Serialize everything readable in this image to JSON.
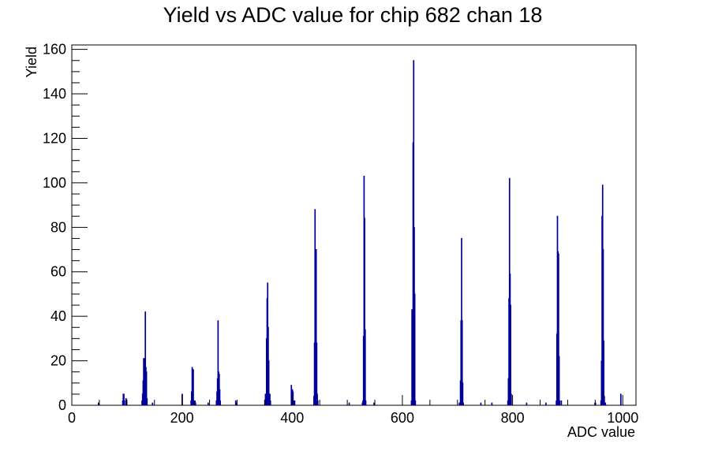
{
  "chart_data": {
    "type": "bar",
    "title": "Yield vs ADC value for chip 682 chan 18",
    "xlabel": "ADC value",
    "ylabel": "Yield",
    "xlim": [
      0,
      1024
    ],
    "ylim": [
      0,
      162
    ],
    "x_ticks": [
      0,
      200,
      400,
      600,
      800,
      1000
    ],
    "y_ticks": [
      0,
      20,
      40,
      60,
      80,
      100,
      120,
      140,
      160
    ],
    "grid": false,
    "legend": "none",
    "colors": {
      "histogram": "#000099",
      "axes": "#000000"
    },
    "series": [
      {
        "points": [
          [
            48,
            1
          ],
          [
            92,
            2
          ],
          [
            93,
            5
          ],
          [
            94,
            5
          ],
          [
            95,
            2
          ],
          [
            98,
            3
          ],
          [
            99,
            2
          ],
          [
            127,
            2
          ],
          [
            128,
            5
          ],
          [
            129,
            11
          ],
          [
            130,
            21
          ],
          [
            131,
            21
          ],
          [
            132,
            18
          ],
          [
            133,
            42
          ],
          [
            134,
            17
          ],
          [
            135,
            15
          ],
          [
            136,
            3
          ],
          [
            146,
            1
          ],
          [
            200,
            5
          ],
          [
            216,
            2
          ],
          [
            217,
            6
          ],
          [
            218,
            17
          ],
          [
            219,
            16
          ],
          [
            220,
            16
          ],
          [
            221,
            2
          ],
          [
            223,
            2
          ],
          [
            224,
            1
          ],
          [
            247,
            1
          ],
          [
            262,
            2
          ],
          [
            263,
            6
          ],
          [
            264,
            12
          ],
          [
            265,
            38
          ],
          [
            266,
            15
          ],
          [
            267,
            14
          ],
          [
            268,
            7
          ],
          [
            269,
            2
          ],
          [
            297,
            2
          ],
          [
            298,
            1
          ],
          [
            350,
            2
          ],
          [
            351,
            5
          ],
          [
            352,
            4
          ],
          [
            353,
            30
          ],
          [
            354,
            48
          ],
          [
            355,
            55
          ],
          [
            356,
            35
          ],
          [
            357,
            20
          ],
          [
            358,
            4
          ],
          [
            359,
            5
          ],
          [
            360,
            2
          ],
          [
            398,
            9
          ],
          [
            399,
            5
          ],
          [
            400,
            7
          ],
          [
            401,
            6
          ],
          [
            402,
            2
          ],
          [
            403,
            1
          ],
          [
            404,
            2
          ],
          [
            439,
            4
          ],
          [
            440,
            28
          ],
          [
            441,
            88
          ],
          [
            442,
            70
          ],
          [
            443,
            70
          ],
          [
            444,
            28
          ],
          [
            445,
            5
          ],
          [
            446,
            2
          ],
          [
            503,
            1
          ],
          [
            527,
            1
          ],
          [
            528,
            2
          ],
          [
            529,
            31
          ],
          [
            530,
            103
          ],
          [
            531,
            84
          ],
          [
            532,
            34
          ],
          [
            533,
            2
          ],
          [
            548,
            1
          ],
          [
            616,
            2
          ],
          [
            617,
            43
          ],
          [
            618,
            25
          ],
          [
            619,
            118
          ],
          [
            620,
            155
          ],
          [
            621,
            80
          ],
          [
            622,
            50
          ],
          [
            623,
            2
          ],
          [
            703,
            1
          ],
          [
            704,
            1
          ],
          [
            705,
            11
          ],
          [
            706,
            38
          ],
          [
            707,
            75
          ],
          [
            708,
            38
          ],
          [
            709,
            10
          ],
          [
            710,
            1
          ],
          [
            742,
            1
          ],
          [
            762,
            1
          ],
          [
            791,
            2
          ],
          [
            792,
            12
          ],
          [
            793,
            48
          ],
          [
            794,
            102
          ],
          [
            795,
            59
          ],
          [
            796,
            45
          ],
          [
            797,
            5
          ],
          [
            825,
            1
          ],
          [
            860,
            1
          ],
          [
            879,
            2
          ],
          [
            880,
            32
          ],
          [
            881,
            85
          ],
          [
            882,
            69
          ],
          [
            883,
            68
          ],
          [
            884,
            22
          ],
          [
            885,
            2
          ],
          [
            888,
            2
          ],
          [
            949,
            1
          ],
          [
            950,
            1
          ],
          [
            960,
            2
          ],
          [
            961,
            20
          ],
          [
            962,
            85
          ],
          [
            963,
            99
          ],
          [
            964,
            70
          ],
          [
            965,
            29
          ],
          [
            966,
            4
          ],
          [
            967,
            1
          ],
          [
            968,
            1
          ],
          [
            996,
            5
          ]
        ]
      }
    ]
  }
}
